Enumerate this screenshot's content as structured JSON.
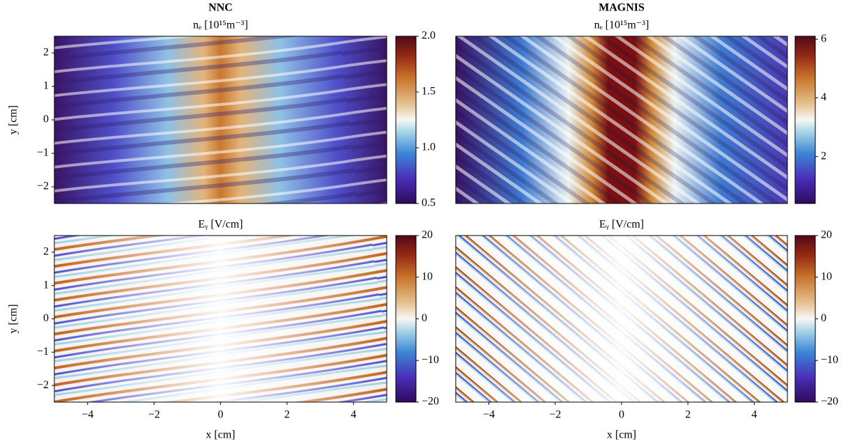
{
  "chart_data": [
    {
      "type": "heatmap",
      "title": "NNC",
      "subtitle": "nₑ [10¹⁵m⁻³]",
      "ylabel": "y [cm]",
      "xlim": [
        -5,
        5
      ],
      "ylim": [
        -2.5,
        2.5
      ],
      "yticks": [
        {
          "value": -2,
          "label": "−2"
        },
        {
          "value": -1,
          "label": "−1"
        },
        0,
        1,
        2
      ],
      "clim": [
        0.5,
        2.0
      ],
      "cticks": [
        {
          "value": 0.5,
          "label": "0.5"
        },
        {
          "value": 1.0,
          "label": "1.0"
        },
        {
          "value": 1.5,
          "label": "1.5"
        },
        {
          "value": 2.0,
          "label": "2.0"
        }
      ]
    },
    {
      "type": "heatmap",
      "title": "MAGNIS",
      "subtitle": "nₑ [10¹⁵m⁻³]",
      "xlim": [
        -5,
        5
      ],
      "ylim": [
        -2.5,
        2.5
      ],
      "clim": [
        0.4,
        6.1
      ],
      "cticks": [
        2,
        4,
        6
      ]
    },
    {
      "type": "heatmap",
      "subtitle": "Eᵧ [V/cm]",
      "xlabel": "x [cm]",
      "ylabel": "y [cm]",
      "xlim": [
        -5,
        5
      ],
      "ylim": [
        -2.5,
        2.5
      ],
      "xticks": [
        {
          "value": -4,
          "label": "−4"
        },
        {
          "value": -2,
          "label": "−2"
        },
        0,
        2,
        4
      ],
      "yticks": [
        {
          "value": -2,
          "label": "−2"
        },
        {
          "value": -1,
          "label": "−1"
        },
        0,
        1,
        2
      ],
      "clim": [
        -20,
        20
      ],
      "cticks": [
        {
          "value": -20,
          "label": "−20"
        },
        {
          "value": -10,
          "label": "−10"
        },
        0,
        10,
        20
      ]
    },
    {
      "type": "heatmap",
      "subtitle": "Eᵧ [V/cm]",
      "xlabel": "x [cm]",
      "xlim": [
        -5,
        5
      ],
      "ylim": [
        -2.5,
        2.5
      ],
      "xticks": [
        {
          "value": -4,
          "label": "−4"
        },
        {
          "value": -2,
          "label": "−2"
        },
        0,
        2,
        4
      ],
      "clim": [
        -20,
        20
      ],
      "cticks": [
        {
          "value": -20,
          "label": "−20"
        },
        {
          "value": -10,
          "label": "−10"
        },
        0,
        10,
        20
      ]
    }
  ]
}
